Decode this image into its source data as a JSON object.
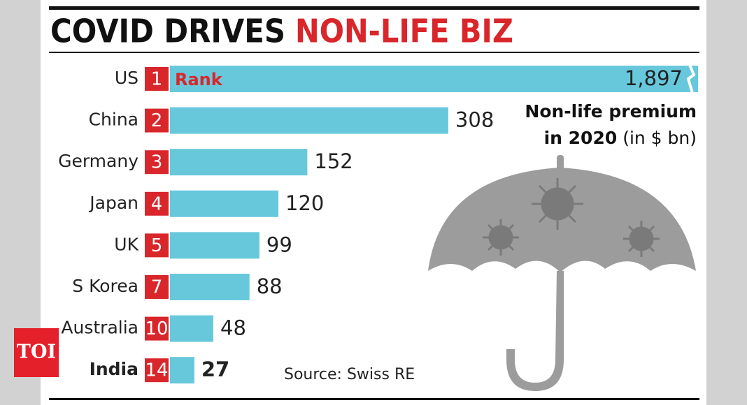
{
  "chart_data": {
    "type": "bar",
    "orientation": "horizontal",
    "title": "COVID DRIVES",
    "title_highlight": "NON-LIFE BIZ",
    "subtitle": [
      "Non-life premium",
      "in 2020",
      "(in $ bn)"
    ],
    "categories": [
      "US",
      "China",
      "Germany",
      "Japan",
      "UK",
      "S Korea",
      "Australia",
      "India"
    ],
    "ranks": [
      1,
      2,
      3,
      4,
      5,
      7,
      10,
      14
    ],
    "rank_label": "Rank",
    "values": [
      1897,
      308,
      152,
      120,
      99,
      88,
      48,
      27
    ],
    "value_labels": [
      "1,897",
      "308",
      "152",
      "120",
      "99",
      "88",
      "48",
      "27"
    ],
    "highlight": "India",
    "color": "#67c8dc",
    "rank_color": "#d9262b",
    "source": "Source: Swiss RE",
    "logo": "TOI"
  }
}
